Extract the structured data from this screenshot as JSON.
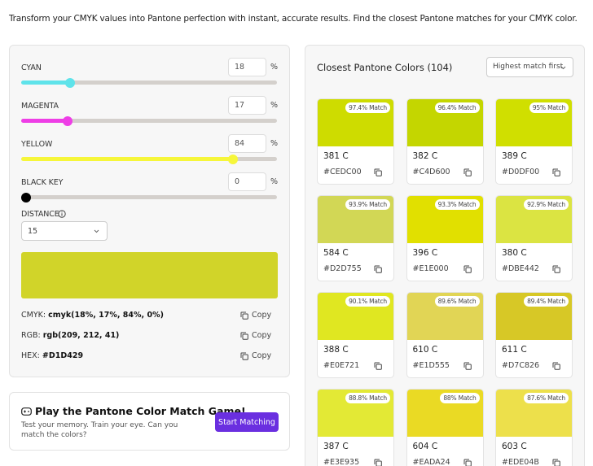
{
  "intro": "Transform your CMYK values into Pantone perfection with instant, accurate results. Find the closest Pantone matches for your CMYK color.",
  "sliders": [
    {
      "label": "CYAN",
      "value": 18,
      "unit": "%",
      "color": "#5fe3ea"
    },
    {
      "label": "MAGENTA",
      "value": 17,
      "unit": "%",
      "color": "#ee3ee6"
    },
    {
      "label": "YELLOW",
      "value": 84,
      "unit": "%",
      "color": "#f6f63a"
    },
    {
      "label": "BLACK KEY",
      "value": 0,
      "unit": "%",
      "color": "#000000"
    }
  ],
  "distance": {
    "label": "DISTANCE",
    "value": "15"
  },
  "color_info": [
    {
      "label": "CMYK:",
      "value": "cmyk(18%, 17%, 84%, 0%)",
      "action": "Copy"
    },
    {
      "label": "RGB:",
      "value": "rgb(209, 212, 41)",
      "action": "Copy"
    },
    {
      "label": "HEX:",
      "value": "#D1D429",
      "action": "Copy"
    }
  ],
  "game": {
    "title": "Play the Pantone Color Match Game!",
    "text": "Test your memory. Train your eye. Can you match the colors?",
    "button": "Start Matching"
  },
  "results": {
    "title": "Closest Pantone Colors (104)",
    "sort": "Highest match first",
    "items": [
      {
        "match": "97.4% Match",
        "name": "381 C",
        "hex": "#CEDC00"
      },
      {
        "match": "96.4% Match",
        "name": "382 C",
        "hex": "#C4D600"
      },
      {
        "match": "95% Match",
        "name": "389 C",
        "hex": "#D0DF00"
      },
      {
        "match": "93.9% Match",
        "name": "584 C",
        "hex": "#D2D755"
      },
      {
        "match": "93.3% Match",
        "name": "396 C",
        "hex": "#E1E000"
      },
      {
        "match": "92.9% Match",
        "name": "380 C",
        "hex": "#DBE442"
      },
      {
        "match": "90.1% Match",
        "name": "388 C",
        "hex": "#E0E721"
      },
      {
        "match": "89.6% Match",
        "name": "610 C",
        "hex": "#E1D555"
      },
      {
        "match": "89.4% Match",
        "name": "611 C",
        "hex": "#D7C826"
      },
      {
        "match": "88.8% Match",
        "name": "387 C",
        "hex": "#E3E935"
      },
      {
        "match": "88% Match",
        "name": "604 C",
        "hex": "#EADA24"
      },
      {
        "match": "87.6% Match",
        "name": "603 C",
        "hex": "#EDE04B"
      }
    ]
  }
}
